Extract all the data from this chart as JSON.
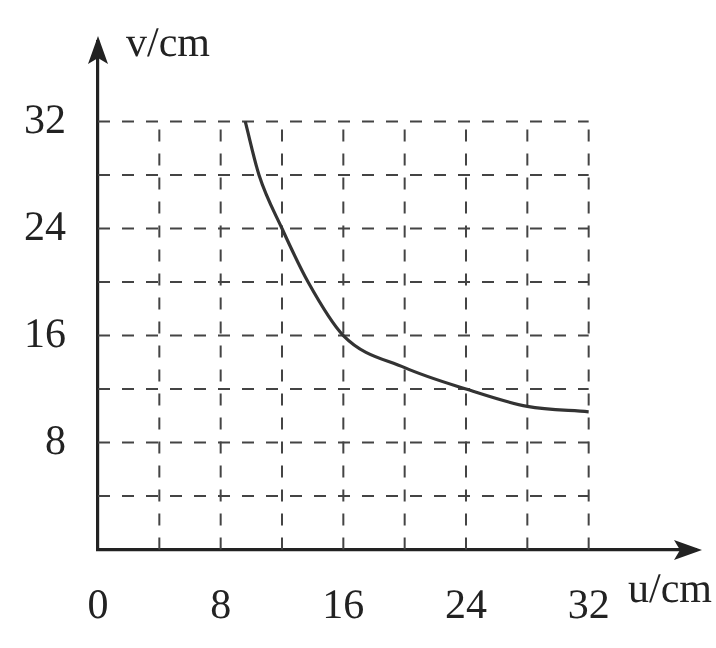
{
  "chart_data": {
    "type": "line",
    "xlabel": "u/cm",
    "ylabel": "v/cm",
    "x": [
      9.6,
      10.5,
      12,
      13.7,
      16,
      20,
      24,
      28,
      32
    ],
    "series": [
      {
        "color": "#333333",
        "values": [
          32,
          28,
          24,
          20,
          16,
          13.6,
          12,
          10.7,
          10.3
        ]
      }
    ],
    "xlim": [
      0,
      39
    ],
    "ylim": [
      0,
      38
    ],
    "xticks": [
      0,
      {
        "value": 4,
        "label": null
      },
      8,
      {
        "value": 12,
        "label": null
      },
      16,
      {
        "value": 20,
        "label": null
      },
      24,
      {
        "value": 28,
        "label": null
      },
      32
    ],
    "yticks": [
      {
        "value": 4,
        "label": null
      },
      8,
      {
        "value": 12,
        "label": null
      },
      16,
      {
        "value": 20,
        "label": null
      },
      24,
      {
        "value": 28,
        "label": null
      },
      32
    ],
    "grid": true,
    "legend": false,
    "marker": "none",
    "line_style": "solid"
  }
}
